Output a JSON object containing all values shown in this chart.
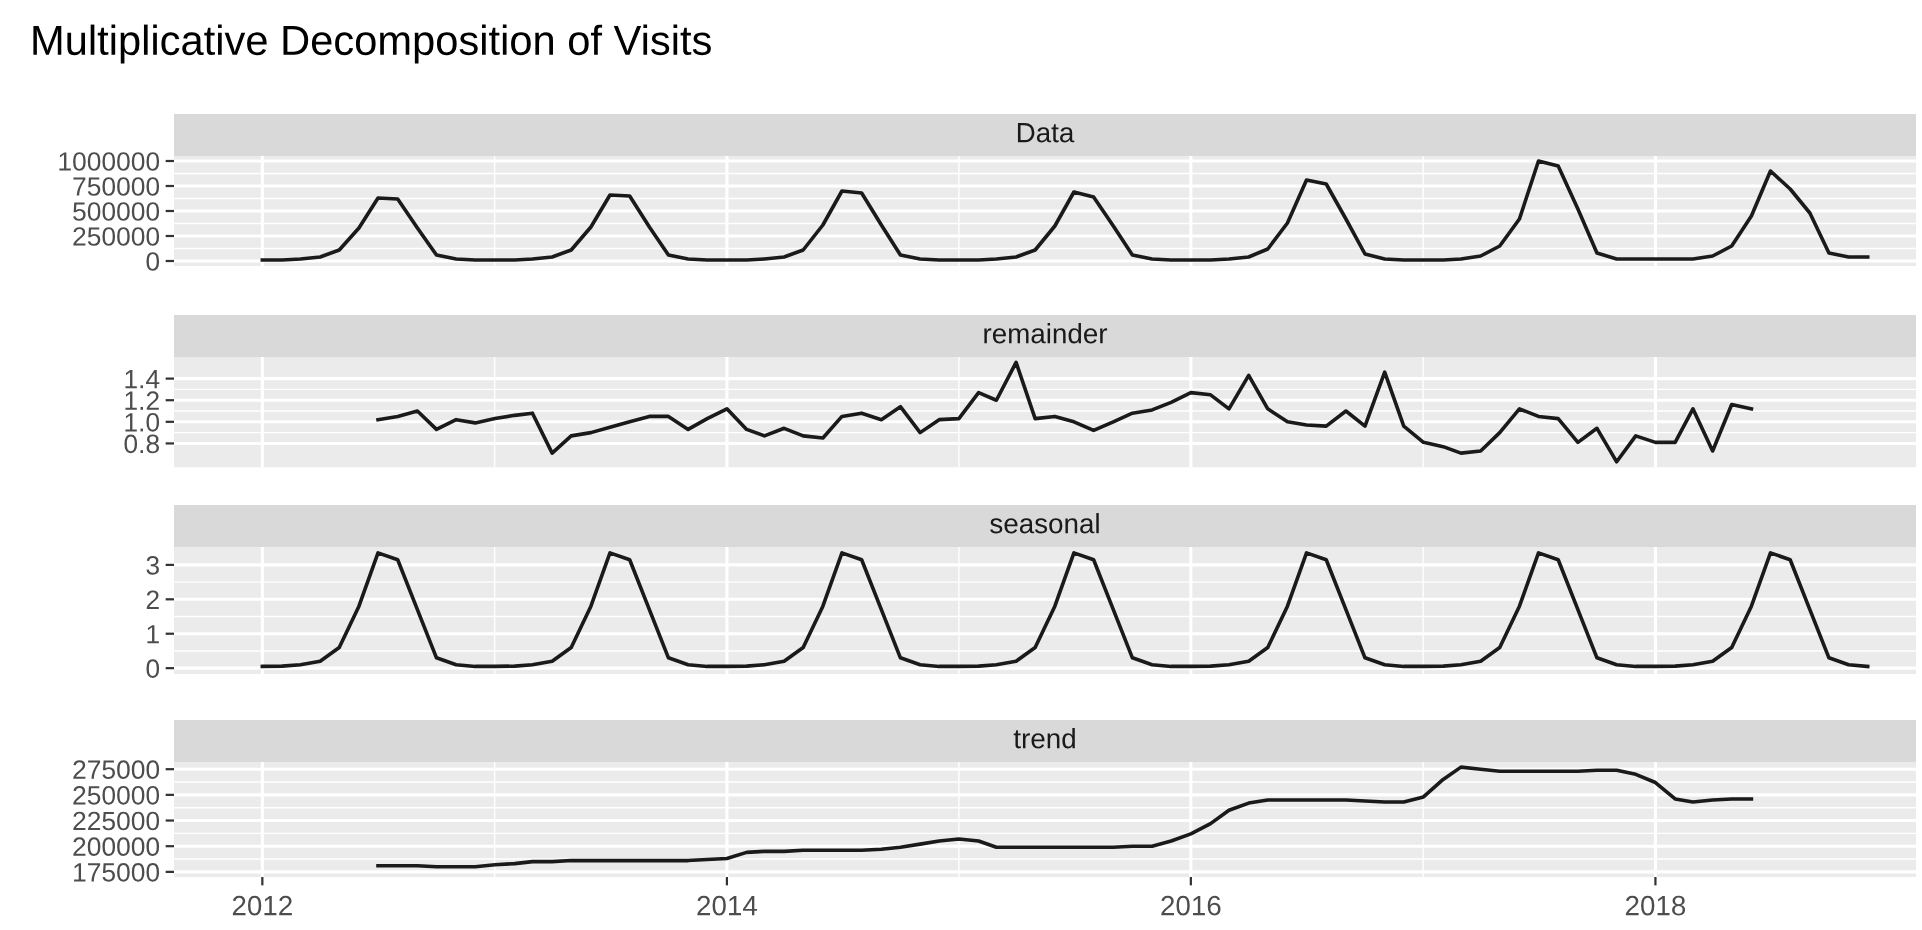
{
  "chart_data": [
    {
      "type": "line",
      "title": "Multiplicative Decomposition of Visits",
      "subtitle": "Data",
      "color": "#1a1a1a",
      "grid": true,
      "tick_labels": "y",
      "x": [
        "2012-01",
        "2012-02",
        "2012-03",
        "2012-04",
        "2012-05",
        "2012-06",
        "2012-07",
        "2012-08",
        "2012-09",
        "2012-10",
        "2012-11",
        "2012-12",
        "2013-01",
        "2013-02",
        "2013-03",
        "2013-04",
        "2013-05",
        "2013-06",
        "2013-07",
        "2013-08",
        "2013-09",
        "2013-10",
        "2013-11",
        "2013-12",
        "2014-01",
        "2014-02",
        "2014-03",
        "2014-04",
        "2014-05",
        "2014-06",
        "2014-07",
        "2014-08",
        "2014-09",
        "2014-10",
        "2014-11",
        "2014-12",
        "2015-01",
        "2015-02",
        "2015-03",
        "2015-04",
        "2015-05",
        "2015-06",
        "2015-07",
        "2015-08",
        "2015-09",
        "2015-10",
        "2015-11",
        "2015-12",
        "2016-01",
        "2016-02",
        "2016-03",
        "2016-04",
        "2016-05",
        "2016-06",
        "2016-07",
        "2016-08",
        "2016-09",
        "2016-10",
        "2016-11",
        "2016-12",
        "2017-01",
        "2017-02",
        "2017-03",
        "2017-04",
        "2017-05",
        "2017-06",
        "2017-07",
        "2017-08",
        "2017-09",
        "2017-10",
        "2017-11",
        "2017-12",
        "2018-01",
        "2018-02",
        "2018-03",
        "2018-04",
        "2018-05",
        "2018-06",
        "2018-07",
        "2018-08",
        "2018-09",
        "2018-10",
        "2018-11",
        "2018-12"
      ],
      "values": [
        10000,
        10000,
        20000,
        40000,
        110000,
        330000,
        630000,
        620000,
        330000,
        60000,
        20000,
        10000,
        10000,
        10000,
        20000,
        40000,
        110000,
        340000,
        660000,
        650000,
        340000,
        60000,
        20000,
        10000,
        10000,
        10000,
        20000,
        40000,
        110000,
        360000,
        700000,
        680000,
        360000,
        60000,
        20000,
        10000,
        10000,
        10000,
        20000,
        40000,
        110000,
        350000,
        690000,
        640000,
        350000,
        60000,
        20000,
        10000,
        10000,
        10000,
        20000,
        40000,
        120000,
        380000,
        810000,
        770000,
        420000,
        70000,
        20000,
        10000,
        10000,
        10000,
        20000,
        50000,
        150000,
        420000,
        1000000,
        950000,
        520000,
        80000,
        20000,
        20000,
        20000,
        20000,
        20000,
        50000,
        150000,
        450000,
        900000,
        720000,
        480000,
        80000,
        40000,
        40000
      ],
      "xlim": [
        "2011-08-15",
        "2019-02-15"
      ],
      "xticks": [
        "2012-01-01",
        "2014-01-01",
        "2016-01-01",
        "2018-01-01"
      ],
      "ylim": [
        -50000,
        1050000
      ],
      "yticks": [
        0,
        250000,
        500000,
        750000,
        1000000
      ]
    },
    {
      "type": "line",
      "subtitle": "remainder",
      "color": "#1a1a1a",
      "grid": true,
      "tick_labels": "y",
      "x": [
        "2012-07",
        "2012-08",
        "2012-09",
        "2012-10",
        "2012-11",
        "2012-12",
        "2013-01",
        "2013-02",
        "2013-03",
        "2013-04",
        "2013-05",
        "2013-06",
        "2013-07",
        "2013-08",
        "2013-09",
        "2013-10",
        "2013-11",
        "2013-12",
        "2014-01",
        "2014-02",
        "2014-03",
        "2014-04",
        "2014-05",
        "2014-06",
        "2014-07",
        "2014-08",
        "2014-09",
        "2014-10",
        "2014-11",
        "2014-12",
        "2015-01",
        "2015-02",
        "2015-03",
        "2015-04",
        "2015-05",
        "2015-06",
        "2015-07",
        "2015-08",
        "2015-09",
        "2015-10",
        "2015-11",
        "2015-12",
        "2016-01",
        "2016-02",
        "2016-03",
        "2016-04",
        "2016-05",
        "2016-06",
        "2016-07",
        "2016-08",
        "2016-09",
        "2016-10",
        "2016-11",
        "2016-12",
        "2017-01",
        "2017-02",
        "2017-03",
        "2017-04",
        "2017-05",
        "2017-06",
        "2017-07",
        "2017-08",
        "2017-09",
        "2017-10",
        "2017-11",
        "2017-12",
        "2018-01",
        "2018-02",
        "2018-03",
        "2018-04",
        "2018-05",
        "2018-06"
      ],
      "values": [
        1.02,
        1.05,
        1.1,
        0.93,
        1.02,
        0.99,
        1.03,
        1.06,
        1.08,
        0.71,
        0.87,
        0.9,
        0.95,
        1.0,
        1.05,
        1.05,
        0.93,
        1.03,
        1.12,
        0.93,
        0.87,
        0.94,
        0.87,
        0.85,
        1.05,
        1.08,
        1.02,
        1.14,
        0.9,
        1.02,
        1.03,
        1.27,
        1.2,
        1.55,
        1.03,
        1.05,
        1.0,
        0.92,
        1.0,
        1.08,
        1.11,
        1.18,
        1.27,
        1.25,
        1.12,
        1.43,
        1.12,
        1.0,
        0.97,
        0.96,
        1.1,
        0.96,
        1.46,
        0.96,
        0.81,
        0.77,
        0.71,
        0.73,
        0.9,
        1.12,
        1.05,
        1.03,
        0.81,
        0.94,
        0.63,
        0.87,
        0.81,
        0.81,
        1.12,
        0.73,
        1.16,
        1.12
      ],
      "xlim": [
        "2011-08-15",
        "2019-02-15"
      ],
      "xticks": [
        "2012-01-01",
        "2014-01-01",
        "2016-01-01",
        "2018-01-01"
      ],
      "ylim": [
        0.58,
        1.6
      ],
      "yticks": [
        0.8,
        {
          "value": 1.0,
          "label": "1.0"
        },
        1.2,
        1.4
      ]
    },
    {
      "type": "line",
      "subtitle": "seasonal",
      "color": "#1a1a1a",
      "grid": true,
      "tick_labels": "y",
      "x": [
        "2012-01",
        "2012-02",
        "2012-03",
        "2012-04",
        "2012-05",
        "2012-06",
        "2012-07",
        "2012-08",
        "2012-09",
        "2012-10",
        "2012-11",
        "2012-12",
        "2013-01",
        "2013-02",
        "2013-03",
        "2013-04",
        "2013-05",
        "2013-06",
        "2013-07",
        "2013-08",
        "2013-09",
        "2013-10",
        "2013-11",
        "2013-12",
        "2014-01",
        "2014-02",
        "2014-03",
        "2014-04",
        "2014-05",
        "2014-06",
        "2014-07",
        "2014-08",
        "2014-09",
        "2014-10",
        "2014-11",
        "2014-12",
        "2015-01",
        "2015-02",
        "2015-03",
        "2015-04",
        "2015-05",
        "2015-06",
        "2015-07",
        "2015-08",
        "2015-09",
        "2015-10",
        "2015-11",
        "2015-12",
        "2016-01",
        "2016-02",
        "2016-03",
        "2016-04",
        "2016-05",
        "2016-06",
        "2016-07",
        "2016-08",
        "2016-09",
        "2016-10",
        "2016-11",
        "2016-12",
        "2017-01",
        "2017-02",
        "2017-03",
        "2017-04",
        "2017-05",
        "2017-06",
        "2017-07",
        "2017-08",
        "2017-09",
        "2017-10",
        "2017-11",
        "2017-12",
        "2018-01",
        "2018-02",
        "2018-03",
        "2018-04",
        "2018-05",
        "2018-06",
        "2018-07",
        "2018-08",
        "2018-09",
        "2018-10",
        "2018-11",
        "2018-12"
      ],
      "values": [
        0.05,
        0.06,
        0.1,
        0.2,
        0.6,
        1.8,
        3.35,
        3.15,
        1.7,
        0.3,
        0.1,
        0.05,
        0.05,
        0.06,
        0.1,
        0.2,
        0.6,
        1.8,
        3.35,
        3.15,
        1.7,
        0.3,
        0.1,
        0.05,
        0.05,
        0.06,
        0.1,
        0.2,
        0.6,
        1.8,
        3.35,
        3.15,
        1.7,
        0.3,
        0.1,
        0.05,
        0.05,
        0.06,
        0.1,
        0.2,
        0.6,
        1.8,
        3.35,
        3.15,
        1.7,
        0.3,
        0.1,
        0.05,
        0.05,
        0.06,
        0.1,
        0.2,
        0.6,
        1.8,
        3.35,
        3.15,
        1.7,
        0.3,
        0.1,
        0.05,
        0.05,
        0.06,
        0.1,
        0.2,
        0.6,
        1.8,
        3.35,
        3.15,
        1.7,
        0.3,
        0.1,
        0.05,
        0.05,
        0.06,
        0.1,
        0.2,
        0.6,
        1.8,
        3.35,
        3.15,
        1.7,
        0.3,
        0.1,
        0.05
      ],
      "xlim": [
        "2011-08-15",
        "2019-02-15"
      ],
      "xticks": [
        "2012-01-01",
        "2014-01-01",
        "2016-01-01",
        "2018-01-01"
      ],
      "ylim": [
        -0.17,
        3.52
      ],
      "yticks": [
        0,
        1,
        2,
        3
      ]
    },
    {
      "type": "line",
      "subtitle": "trend",
      "color": "#1a1a1a",
      "grid": true,
      "x": [
        "2012-07",
        "2012-08",
        "2012-09",
        "2012-10",
        "2012-11",
        "2012-12",
        "2013-01",
        "2013-02",
        "2013-03",
        "2013-04",
        "2013-05",
        "2013-06",
        "2013-07",
        "2013-08",
        "2013-09",
        "2013-10",
        "2013-11",
        "2013-12",
        "2014-01",
        "2014-02",
        "2014-03",
        "2014-04",
        "2014-05",
        "2014-06",
        "2014-07",
        "2014-08",
        "2014-09",
        "2014-10",
        "2014-11",
        "2014-12",
        "2015-01",
        "2015-02",
        "2015-03",
        "2015-04",
        "2015-05",
        "2015-06",
        "2015-07",
        "2015-08",
        "2015-09",
        "2015-10",
        "2015-11",
        "2015-12",
        "2016-01",
        "2016-02",
        "2016-03",
        "2016-04",
        "2016-05",
        "2016-06",
        "2016-07",
        "2016-08",
        "2016-09",
        "2016-10",
        "2016-11",
        "2016-12",
        "2017-01",
        "2017-02",
        "2017-03",
        "2017-04",
        "2017-05",
        "2017-06",
        "2017-07",
        "2017-08",
        "2017-09",
        "2017-10",
        "2017-11",
        "2017-12",
        "2018-01",
        "2018-02",
        "2018-03",
        "2018-04",
        "2018-05",
        "2018-06"
      ],
      "values": [
        181000,
        181000,
        181000,
        180000,
        180000,
        180000,
        182000,
        183000,
        185000,
        185000,
        186000,
        186000,
        186000,
        186000,
        186000,
        186000,
        186000,
        187000,
        188000,
        194000,
        195000,
        195000,
        196000,
        196000,
        196000,
        196000,
        197000,
        199000,
        202000,
        205000,
        207000,
        205000,
        199000,
        199000,
        199000,
        199000,
        199000,
        199000,
        199000,
        200000,
        200000,
        205000,
        212000,
        222000,
        235000,
        242000,
        245000,
        245000,
        245000,
        245000,
        245000,
        244000,
        243000,
        243000,
        248000,
        265000,
        277000,
        275000,
        273000,
        273000,
        273000,
        273000,
        273000,
        274000,
        274000,
        270000,
        262000,
        246000,
        243000,
        245000,
        246000,
        246000
      ],
      "xlim": [
        "2011-08-15",
        "2019-02-15"
      ],
      "xticks": [
        {
          "value": "2012-01-01",
          "label": "2012"
        },
        {
          "value": "2014-01-01",
          "label": "2014"
        },
        {
          "value": "2016-01-01",
          "label": "2016"
        },
        {
          "value": "2018-01-01",
          "label": "2018"
        }
      ],
      "ylim": [
        170000,
        282000
      ],
      "yticks": [
        175000,
        200000,
        225000,
        250000,
        275000
      ]
    }
  ]
}
